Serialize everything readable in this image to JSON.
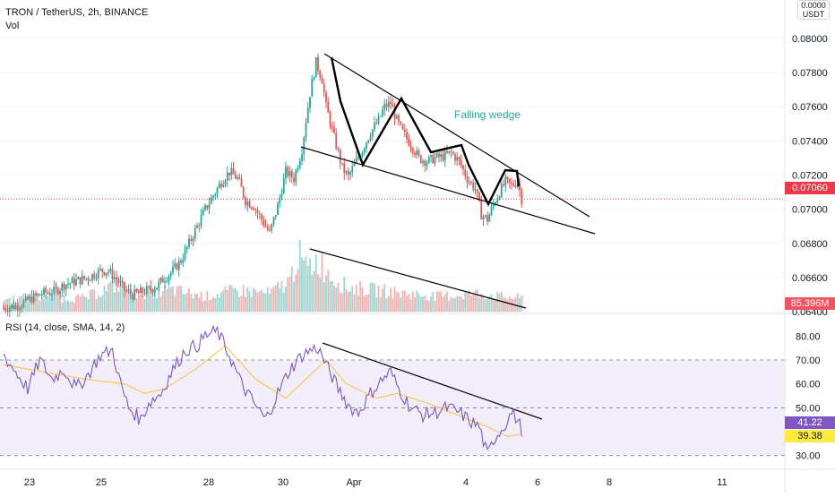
{
  "legend": {
    "price": "TRON / TetherUS, 2h, BINANCE",
    "volume": "Vol",
    "rsi": "RSI (14, close, SMA, 14, 2)"
  },
  "currency_label": {
    "top": "0.0000",
    "bottom": "USDT"
  },
  "annotation": "Falling wedge",
  "tags": {
    "last_price": "0.07060",
    "last_volume": "85.396M",
    "rsi_value": "41.22",
    "rsi_sma_value": "39.38"
  },
  "colors": {
    "up": "#26a69a",
    "down": "#ef5350",
    "rsi_line": "#7e57c2",
    "rsi_sma": "#f5c242",
    "rsi_band": "#7e57c2",
    "annotation": "#26a69a",
    "price_line": "#f23645"
  },
  "chart_data": [
    {
      "type": "candlestick",
      "title": "TRON / TetherUS, 2h, BINANCE",
      "x_ticks": [
        "23",
        "25",
        "28",
        "30",
        "Apr",
        "4",
        "6",
        "8",
        "11"
      ],
      "y_ticks": [
        "0.08000",
        "0.07800",
        "0.07600",
        "0.07400",
        "0.07200",
        "0.07000",
        "0.06800",
        "0.06600",
        "0.06400"
      ],
      "ylim": [
        0.0638,
        0.0812
      ],
      "last_price": 0.0706,
      "annotation": "Falling wedge",
      "close_path": [
        [
          0,
          0.0642
        ],
        [
          8,
          0.0644
        ],
        [
          14,
          0.0648
        ],
        [
          20,
          0.0651
        ],
        [
          26,
          0.0652
        ],
        [
          30,
          0.0656
        ],
        [
          36,
          0.0658
        ],
        [
          42,
          0.066
        ],
        [
          48,
          0.0664
        ],
        [
          52,
          0.0664
        ],
        [
          56,
          0.0659
        ],
        [
          60,
          0.0653
        ],
        [
          64,
          0.065
        ],
        [
          70,
          0.0652
        ],
        [
          76,
          0.0655
        ],
        [
          80,
          0.066
        ],
        [
          84,
          0.0664
        ],
        [
          88,
          0.067
        ],
        [
          92,
          0.068
        ],
        [
          96,
          0.069
        ],
        [
          100,
          0.07
        ],
        [
          104,
          0.0708
        ],
        [
          108,
          0.0716
        ],
        [
          112,
          0.0722
        ],
        [
          116,
          0.0718
        ],
        [
          118,
          0.0712
        ],
        [
          120,
          0.0705
        ],
        [
          124,
          0.0702
        ],
        [
          128,
          0.0694
        ],
        [
          132,
          0.0686
        ],
        [
          136,
          0.0702
        ],
        [
          140,
          0.0722
        ],
        [
          144,
          0.0718
        ],
        [
          148,
          0.0735
        ],
        [
          150,
          0.0752
        ],
        [
          152,
          0.0768
        ],
        [
          155,
          0.0786
        ],
        [
          158,
          0.0776
        ],
        [
          160,
          0.076
        ],
        [
          164,
          0.0742
        ],
        [
          168,
          0.0724
        ],
        [
          171,
          0.0719
        ],
        [
          174,
          0.0726
        ],
        [
          178,
          0.0735
        ],
        [
          182,
          0.0745
        ],
        [
          186,
          0.0752
        ],
        [
          189,
          0.076
        ],
        [
          192,
          0.0762
        ],
        [
          195,
          0.0752
        ],
        [
          198,
          0.0745
        ],
        [
          202,
          0.0738
        ],
        [
          206,
          0.073
        ],
        [
          210,
          0.0728
        ],
        [
          214,
          0.073
        ],
        [
          218,
          0.0731
        ],
        [
          222,
          0.0733
        ],
        [
          226,
          0.0728
        ],
        [
          230,
          0.0718
        ],
        [
          234,
          0.0712
        ],
        [
          237,
          0.0697
        ],
        [
          240,
          0.0694
        ],
        [
          243,
          0.0703
        ],
        [
          246,
          0.071
        ],
        [
          249,
          0.0716
        ],
        [
          252,
          0.0714
        ],
        [
          255,
          0.0716
        ],
        [
          257,
          0.0706
        ]
      ]
    },
    {
      "type": "bar",
      "title": "Vol",
      "last_value": "85.396M",
      "bars_path": [
        [
          0,
          0.2
        ],
        [
          20,
          0.25
        ],
        [
          40,
          0.22
        ],
        [
          56,
          0.45
        ],
        [
          66,
          0.3
        ],
        [
          84,
          0.35
        ],
        [
          100,
          0.25
        ],
        [
          116,
          0.35
        ],
        [
          132,
          0.3
        ],
        [
          142,
          0.5
        ],
        [
          146,
          0.95
        ],
        [
          150,
          0.7
        ],
        [
          156,
          0.85
        ],
        [
          162,
          0.6
        ],
        [
          170,
          0.4
        ],
        [
          186,
          0.35
        ],
        [
          198,
          0.3
        ],
        [
          216,
          0.25
        ],
        [
          236,
          0.3
        ],
        [
          246,
          0.25
        ],
        [
          257,
          0.22
        ]
      ]
    },
    {
      "type": "line",
      "title": "RSI (14, close, SMA, 14, 2)",
      "y_ticks": [
        "80.00",
        "70.00",
        "60.00",
        "50.00",
        "30.00"
      ],
      "ylim": [
        25,
        85
      ],
      "band": [
        30,
        70
      ],
      "midline": 50,
      "series": [
        {
          "name": "RSI",
          "values": [
            [
              0,
              72
            ],
            [
              6,
              65
            ],
            [
              12,
              58
            ],
            [
              18,
              70
            ],
            [
              24,
              62
            ],
            [
              30,
              66
            ],
            [
              36,
              58
            ],
            [
              42,
              64
            ],
            [
              48,
              72
            ],
            [
              54,
              74
            ],
            [
              58,
              60
            ],
            [
              62,
              50
            ],
            [
              68,
              45
            ],
            [
              72,
              52
            ],
            [
              78,
              56
            ],
            [
              84,
              66
            ],
            [
              90,
              74
            ],
            [
              96,
              76
            ],
            [
              100,
              80
            ],
            [
              106,
              82
            ],
            [
              112,
              72
            ],
            [
              118,
              60
            ],
            [
              124,
              52
            ],
            [
              130,
              45
            ],
            [
              136,
              56
            ],
            [
              142,
              66
            ],
            [
              148,
              72
            ],
            [
              152,
              74
            ],
            [
              156,
              75
            ],
            [
              160,
              68
            ],
            [
              166,
              58
            ],
            [
              172,
              50
            ],
            [
              176,
              48
            ],
            [
              182,
              56
            ],
            [
              188,
              62
            ],
            [
              192,
              65
            ],
            [
              196,
              58
            ],
            [
              202,
              50
            ],
            [
              208,
              47
            ],
            [
              214,
              48
            ],
            [
              220,
              50
            ],
            [
              226,
              48
            ],
            [
              232,
              44
            ],
            [
              236,
              42
            ],
            [
              240,
              30
            ],
            [
              244,
              38
            ],
            [
              248,
              42
            ],
            [
              252,
              48
            ],
            [
              254,
              46
            ],
            [
              257,
              41
            ]
          ]
        },
        {
          "name": "RSI-based MA",
          "values": [
            [
              0,
              68
            ],
            [
              20,
              65
            ],
            [
              40,
              62
            ],
            [
              60,
              60
            ],
            [
              70,
              56
            ],
            [
              80,
              58
            ],
            [
              95,
              66
            ],
            [
              110,
              76
            ],
            [
              125,
              62
            ],
            [
              140,
              54
            ],
            [
              150,
              62
            ],
            [
              160,
              70
            ],
            [
              170,
              60
            ],
            [
              185,
              54
            ],
            [
              195,
              56
            ],
            [
              210,
              52
            ],
            [
              225,
              47
            ],
            [
              240,
              42
            ],
            [
              250,
              38
            ],
            [
              257,
              39
            ]
          ]
        }
      ]
    }
  ]
}
